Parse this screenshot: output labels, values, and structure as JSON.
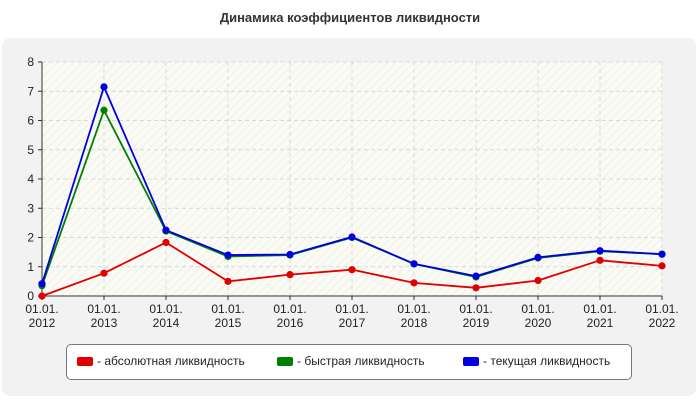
{
  "chart_data": {
    "type": "line",
    "title": "Динамика коэффициентов ликвидности",
    "x_tick_lines": [
      [
        "01.01.",
        "2012"
      ],
      [
        "01.01.",
        "2013"
      ],
      [
        "01.01.",
        "2014"
      ],
      [
        "01.01.",
        "2015"
      ],
      [
        "01.01.",
        "2016"
      ],
      [
        "01.01.",
        "2017"
      ],
      [
        "01.01.",
        "2018"
      ],
      [
        "01.01.",
        "2019"
      ],
      [
        "01.01.",
        "2020"
      ],
      [
        "01.01.",
        "2021"
      ],
      [
        "01.01.",
        "2022"
      ]
    ],
    "ylim": [
      0,
      8
    ],
    "yticks": [
      0,
      1,
      2,
      3,
      4,
      5,
      6,
      7,
      8
    ],
    "grid": true,
    "legend_position": "bottom",
    "series": [
      {
        "name": "- абсолютная ликвидность",
        "color": "#e00000",
        "values": [
          0.0,
          0.78,
          1.83,
          0.5,
          0.73,
          0.9,
          0.45,
          0.28,
          0.53,
          1.22,
          1.03
        ]
      },
      {
        "name": "- быстрая ликвидность",
        "color": "#008000",
        "values": [
          0.35,
          6.35,
          2.22,
          1.35,
          1.4,
          2.0,
          1.1,
          0.65,
          1.3,
          1.53,
          1.43
        ]
      },
      {
        "name": "- текущая ликвидность",
        "color": "#0000e0",
        "values": [
          0.42,
          7.15,
          2.25,
          1.4,
          1.42,
          2.02,
          1.1,
          0.68,
          1.32,
          1.55,
          1.43
        ]
      }
    ]
  }
}
